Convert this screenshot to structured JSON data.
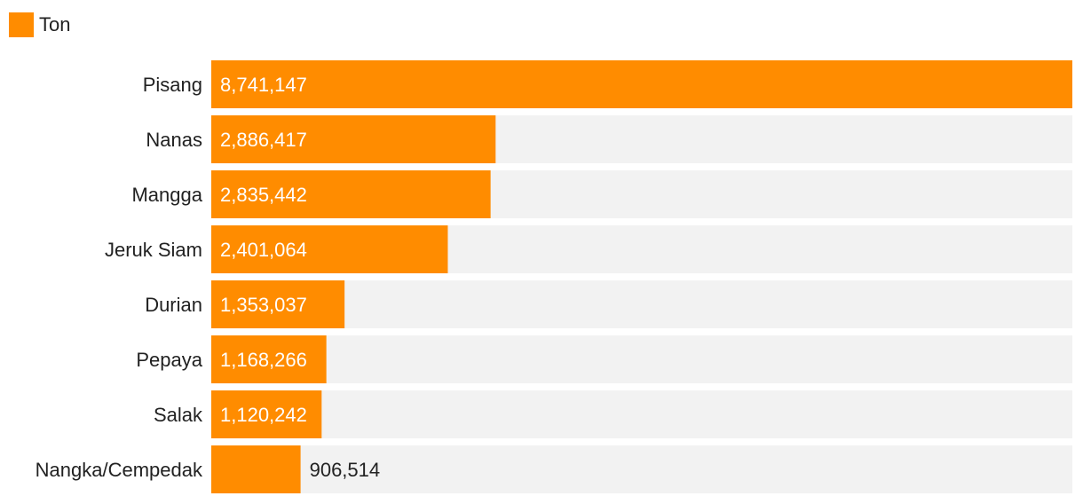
{
  "chart_data": {
    "type": "bar",
    "orientation": "horizontal",
    "legend": [
      {
        "label": "Ton",
        "color": "#FF8C00"
      }
    ],
    "legend_position": "top-left",
    "categories": [
      "Pisang",
      "Nanas",
      "Mangga",
      "Jeruk Siam",
      "Durian",
      "Pepaya",
      "Salak",
      "Nangka/Cempedak"
    ],
    "series": [
      {
        "name": "Ton",
        "values": [
          8741147,
          2886417,
          2835442,
          2401064,
          1353037,
          1168266,
          1120242,
          906514
        ],
        "value_labels": [
          "8,741,147",
          "2,886,417",
          "2,835,442",
          "2,401,064",
          "1,353,037",
          "1,168,266",
          "1,120,242",
          "906,514"
        ]
      }
    ],
    "xlim": [
      0,
      8741147
    ],
    "grid": false,
    "colors": {
      "bar": "#FF8C00",
      "track": "#F2F2F2",
      "label_inside": "#FFFFFF",
      "label_outside": "#222222"
    }
  }
}
